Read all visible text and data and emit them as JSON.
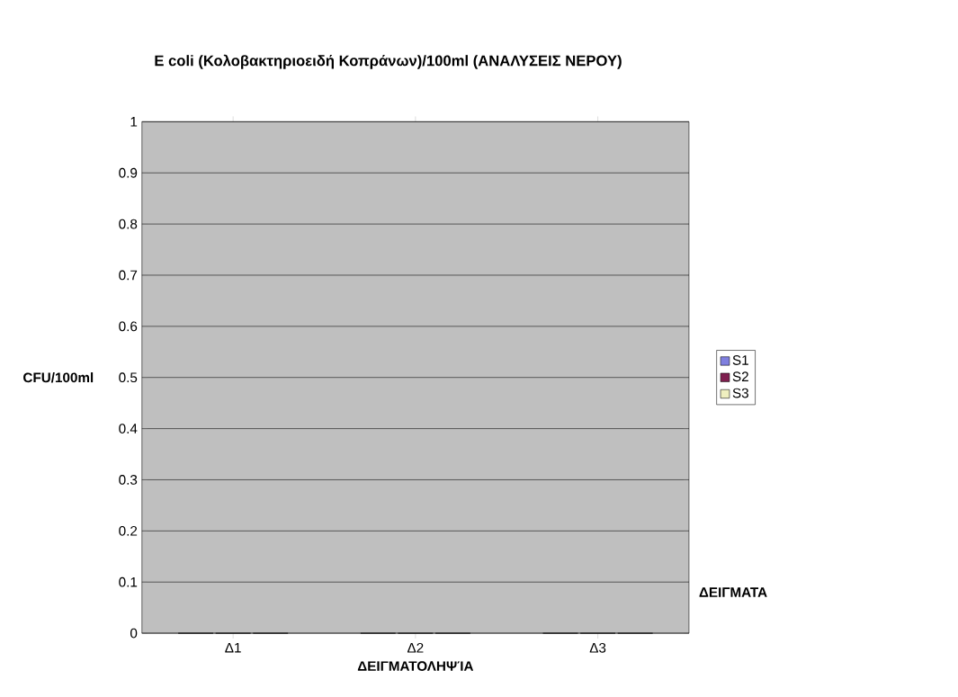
{
  "chart_data": {
    "type": "bar",
    "title": "E coli (Κολοβακτηριοειδή Κοπράνων)/100ml (ΑΝΑΛΥΣΕΙΣ ΝΕΡΟΥ)",
    "xlabel": "ΔΕΙΓΜΑΤΟΛΗΨΊΑ",
    "ylabel": "CFU/100ml",
    "annotations": [
      "ΔΕΙΓΜΑΤΑ"
    ],
    "categories": [
      "Δ1",
      "Δ2",
      "Δ3"
    ],
    "series": [
      {
        "name": "S1",
        "color": "#7f7fdf",
        "values": [
          0,
          0,
          0
        ]
      },
      {
        "name": "S2",
        "color": "#7f1f4f",
        "values": [
          0,
          0,
          0
        ]
      },
      {
        "name": "S3",
        "color": "#efefbf",
        "values": [
          0,
          0,
          0
        ]
      }
    ],
    "ylim": [
      0,
      1
    ],
    "yticks": [
      0,
      0.1,
      0.2,
      0.3,
      0.4,
      0.5,
      0.6,
      0.7,
      0.8,
      0.9,
      1
    ],
    "grid": "y",
    "legend": "right"
  }
}
